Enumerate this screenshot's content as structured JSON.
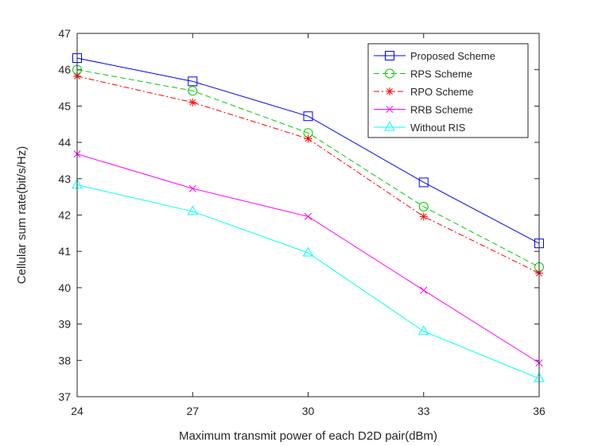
{
  "chart_data": {
    "type": "line",
    "title": "",
    "xlabel": "Maximum transmit power of each D2D pair(dBm)",
    "ylabel": "Cellular sum rate(bit/s/Hz)",
    "x": [
      24,
      27,
      30,
      33,
      36
    ],
    "xlim": [
      24,
      36
    ],
    "ylim": [
      37,
      47
    ],
    "xticks": [
      "24",
      "27",
      "30",
      "33",
      "36"
    ],
    "yticks": [
      "37",
      "38",
      "39",
      "40",
      "41",
      "42",
      "43",
      "44",
      "45",
      "46",
      "47"
    ],
    "grid": false,
    "legend_position": "top-right",
    "series": [
      {
        "name": "Proposed Scheme",
        "values": [
          46.32,
          45.68,
          44.72,
          42.9,
          41.22
        ],
        "color": "#0000ff",
        "dash": "solid",
        "marker": "square"
      },
      {
        "name": "RPS Scheme",
        "values": [
          46.0,
          45.42,
          44.26,
          42.23,
          40.57
        ],
        "color": "#00cc00",
        "dash": "dashed",
        "marker": "circle"
      },
      {
        "name": "RPO Scheme",
        "values": [
          45.82,
          45.1,
          44.1,
          41.96,
          40.4
        ],
        "color": "#ff0000",
        "dash": "dashdot",
        "marker": "asterisk"
      },
      {
        "name": "RRB Scheme",
        "values": [
          43.68,
          42.73,
          41.96,
          39.93,
          37.93
        ],
        "color": "#ff00ff",
        "dash": "solid",
        "marker": "x"
      },
      {
        "name": "Without RIS",
        "values": [
          42.83,
          42.1,
          40.96,
          38.8,
          37.5
        ],
        "color": "#00ffff",
        "dash": "solid",
        "marker": "triangle"
      }
    ]
  }
}
